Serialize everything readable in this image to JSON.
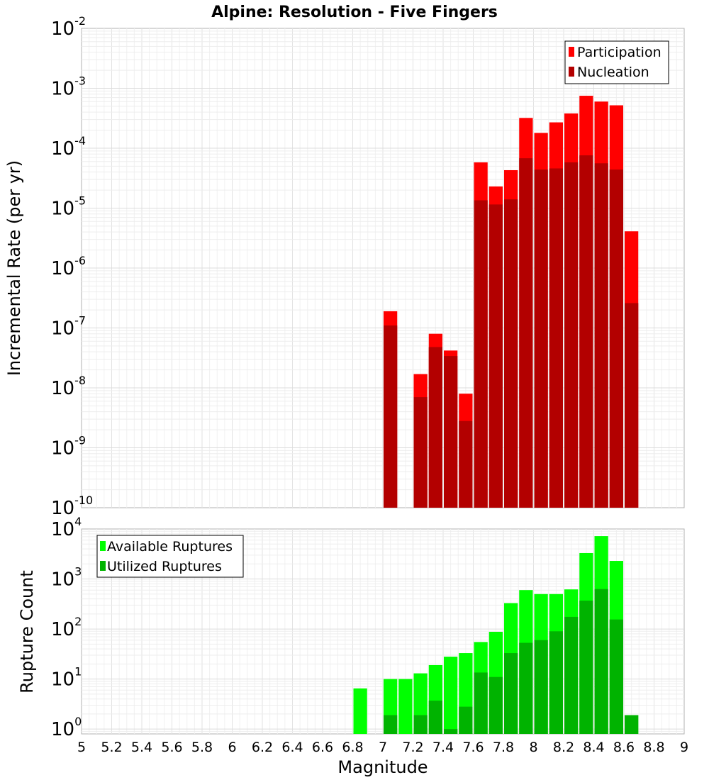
{
  "chart_data": [
    {
      "type": "bar",
      "title": "Alpine: Resolution - Five Fingers",
      "xlabel": "Magnitude",
      "ylabel": "Incremental Rate (per yr)",
      "yscale": "log",
      "ylim": [
        1e-10,
        0.01
      ],
      "xlim": [
        5,
        9
      ],
      "grid": true,
      "legend_position": "top-right",
      "bin_width": 0.1,
      "x": [
        7.05,
        7.25,
        7.35,
        7.45,
        7.55,
        7.65,
        7.75,
        7.85,
        7.95,
        8.05,
        8.15,
        8.25,
        8.35,
        8.45,
        8.55,
        8.65
      ],
      "series": [
        {
          "name": "Participation",
          "color": "#ff0000",
          "values": [
            1.9e-07,
            1.7e-08,
            8e-08,
            4.2e-08,
            8e-09,
            5.8e-05,
            2.3e-05,
            4.3e-05,
            0.00032,
            0.00018,
            0.00027,
            0.00038,
            0.00075,
            0.0006,
            0.00052,
            4.1e-06
          ]
        },
        {
          "name": "Nucleation",
          "color": "#b30000",
          "values": [
            1.1e-07,
            7e-09,
            4.8e-08,
            3.4e-08,
            2.8e-09,
            1.35e-05,
            1.15e-05,
            1.4e-05,
            6.8e-05,
            4.4e-05,
            4.6e-05,
            5.8e-05,
            7.6e-05,
            5.6e-05,
            4.4e-05,
            2.6e-07
          ]
        }
      ]
    },
    {
      "type": "bar",
      "xlabel": "Magnitude",
      "ylabel": "Rupture Count",
      "yscale": "log",
      "ylim": [
        0.8,
        10000
      ],
      "xlim": [
        5,
        9
      ],
      "grid": true,
      "legend_position": "top-left",
      "bin_width": 0.1,
      "x": [
        6.85,
        7.05,
        7.15,
        7.25,
        7.35,
        7.45,
        7.55,
        7.65,
        7.75,
        7.85,
        7.95,
        8.05,
        8.15,
        8.25,
        8.35,
        8.45,
        8.55,
        8.65
      ],
      "series": [
        {
          "name": "Available Ruptures",
          "color": "#00ff00",
          "values": [
            6.5,
            10,
            10,
            13,
            19,
            28,
            33,
            55,
            88,
            330,
            600,
            500,
            500,
            620,
            3300,
            7200,
            2300,
            1.9
          ]
        },
        {
          "name": "Utilized Ruptures",
          "color": "#00b300",
          "values": [
            0,
            1.9,
            0,
            1.9,
            3.7,
            1.0,
            2.8,
            13.5,
            11,
            33,
            53,
            60,
            90,
            175,
            370,
            630,
            155,
            1.9
          ]
        }
      ]
    }
  ],
  "x_ticks": [
    "5",
    "5.2",
    "5.4",
    "5.6",
    "5.8",
    "6",
    "6.2",
    "6.4",
    "6.6",
    "6.8",
    "7",
    "7.2",
    "7.4",
    "7.6",
    "7.8",
    "8",
    "8.2",
    "8.4",
    "8.6",
    "8.8",
    "9"
  ],
  "top_y_ticks": [
    {
      "base": "10",
      "exp": "-2",
      "value": 0.01
    },
    {
      "base": "10",
      "exp": "-3",
      "value": 0.001
    },
    {
      "base": "10",
      "exp": "-4",
      "value": 0.0001
    },
    {
      "base": "10",
      "exp": "-5",
      "value": 1e-05
    },
    {
      "base": "10",
      "exp": "-6",
      "value": 1e-06
    },
    {
      "base": "10",
      "exp": "-7",
      "value": 1e-07
    },
    {
      "base": "10",
      "exp": "-8",
      "value": 1e-08
    },
    {
      "base": "10",
      "exp": "-9",
      "value": 1e-09
    },
    {
      "base": "10",
      "exp": "-10",
      "value": 1e-10
    }
  ],
  "bottom_y_ticks": [
    {
      "base": "10",
      "exp": "4",
      "value": 10000
    },
    {
      "base": "10",
      "exp": "3",
      "value": 1000
    },
    {
      "base": "10",
      "exp": "2",
      "value": 100
    },
    {
      "base": "10",
      "exp": "1",
      "value": 10
    },
    {
      "base": "10",
      "exp": "0",
      "value": 1
    }
  ]
}
